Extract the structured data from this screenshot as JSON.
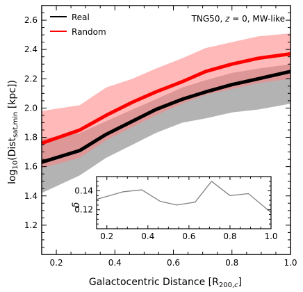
{
  "chart_data": [
    {
      "type": "line",
      "title": "",
      "annotation": "TNG50, z = 0, MW-like",
      "xlabel": "Galactocentric Distance [R200,c]",
      "ylabel": "log10(Distsat,min [kpc])",
      "xlim": [
        0.15,
        1.0
      ],
      "ylim": [
        1.0,
        2.7
      ],
      "xticks": [
        0.2,
        0.4,
        0.6,
        0.8,
        1.0
      ],
      "yticks": [
        1.2,
        1.4,
        1.6,
        1.8,
        2.0,
        2.2,
        2.4,
        2.6
      ],
      "legend_position": "top-left",
      "grid": false,
      "x": [
        0.15,
        0.28,
        0.37,
        0.46,
        0.54,
        0.63,
        0.71,
        0.8,
        0.89,
        1.0
      ],
      "series": [
        {
          "name": "Real",
          "color": "#000000",
          "band_color": "#999999",
          "median": [
            1.63,
            1.71,
            1.82,
            1.91,
            1.99,
            2.06,
            2.11,
            2.16,
            2.2,
            2.25
          ],
          "lower": [
            1.42,
            1.54,
            1.66,
            1.75,
            1.83,
            1.9,
            1.93,
            1.97,
            1.99,
            2.03
          ],
          "upper": [
            1.79,
            1.83,
            1.91,
            1.99,
            2.06,
            2.14,
            2.19,
            2.24,
            2.27,
            2.3
          ]
        },
        {
          "name": "Random",
          "color": "#ff0000",
          "band_color": "#ff8080",
          "median": [
            1.76,
            1.85,
            1.95,
            2.04,
            2.11,
            2.18,
            2.25,
            2.3,
            2.34,
            2.37
          ],
          "lower": [
            1.59,
            1.66,
            1.78,
            1.87,
            1.95,
            2.03,
            2.09,
            2.13,
            2.17,
            2.2
          ],
          "upper": [
            1.98,
            2.02,
            2.14,
            2.2,
            2.27,
            2.34,
            2.41,
            2.45,
            2.49,
            2.51
          ]
        }
      ]
    },
    {
      "type": "line",
      "title": "",
      "xlabel": "",
      "ylabel": "δ",
      "xlim": [
        0.15,
        1.0
      ],
      "ylim": [
        0.1,
        0.155
      ],
      "xticks": [
        0.2,
        0.4,
        0.6,
        0.8,
        1.0
      ],
      "yticks": [
        0.12,
        0.14
      ],
      "grid": false,
      "x": [
        0.15,
        0.28,
        0.37,
        0.46,
        0.54,
        0.63,
        0.71,
        0.8,
        0.89,
        1.0
      ],
      "series": [
        {
          "color": "#808080",
          "values": [
            0.131,
            0.139,
            0.141,
            0.129,
            0.125,
            0.128,
            0.15,
            0.135,
            0.137,
            0.117
          ]
        }
      ]
    }
  ]
}
